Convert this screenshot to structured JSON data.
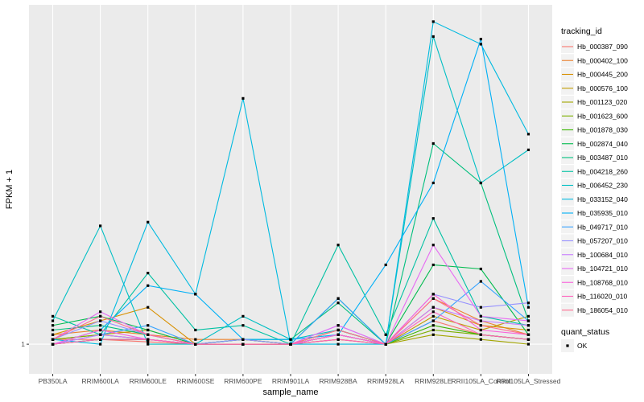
{
  "chart_data": {
    "type": "line",
    "title": "",
    "xlabel": "sample_name",
    "ylabel": "FPKM + 1",
    "categories": [
      "PB350LA",
      "RRIM600LA",
      "RRIM600LE",
      "RRIM600SE",
      "RRIM600PE",
      "RRIM901LA",
      "RRIM928BA",
      "RRIM928LA",
      "RRIM928LE",
      "RRII105LA_Control",
      "RRII105LA_Stressed"
    ],
    "y_ticks": [
      1
    ],
    "y_tick_labels": [
      "1"
    ],
    "ylim": [
      0.94,
      2.03
    ],
    "y_scale": "log",
    "grid": true,
    "legend": {
      "position": "right",
      "title": "tracking_id",
      "entries": [
        "Hb_000387_090",
        "Hb_000402_100",
        "Hb_000445_200",
        "Hb_000576_100",
        "Hb_001123_020",
        "Hb_001623_600",
        "Hb_001878_030",
        "Hb_002874_040",
        "Hb_003487_010",
        "Hb_004218_260",
        "Hb_006452_230",
        "Hb_033152_040",
        "Hb_035935_010",
        "Hb_049717_010",
        "Hb_057207_010",
        "Hb_100684_010",
        "Hb_104721_010",
        "Hb_108768_010",
        "Hb_116020_010",
        "Hb_186054_010"
      ],
      "colors": [
        "#F8766D",
        "#EA8331",
        "#D89000",
        "#C09B00",
        "#A3A500",
        "#7CAE00",
        "#39B600",
        "#00BB4E",
        "#00BF7D",
        "#00C1A3",
        "#00BFC4",
        "#00BAE0",
        "#00B0F6",
        "#35A2FF",
        "#9590FF",
        "#C77CFF",
        "#E76BF3",
        "#FA62DB",
        "#FF62BC",
        "#FF6C91"
      ]
    },
    "shape_legend": {
      "title": "quant_status",
      "entries": [
        "OK"
      ]
    },
    "series": [
      {
        "name": "Hb_000387_090",
        "values": [
          1.01,
          1.01,
          1.005,
          1.0,
          1.0,
          1.0,
          1.01,
          1.0,
          1.05,
          1.02,
          1.01
        ]
      },
      {
        "name": "Hb_000402_100",
        "values": [
          1.02,
          1.03,
          1.02,
          1.01,
          1.01,
          1.0,
          1.02,
          1.0,
          1.1,
          1.05,
          1.02
        ]
      },
      {
        "name": "Hb_000445_200",
        "values": [
          1.02,
          1.05,
          1.08,
          1.0,
          1.01,
          1.0,
          1.03,
          1.0,
          1.08,
          1.04,
          1.03
        ]
      },
      {
        "name": "Hb_000576_100",
        "values": [
          1.01,
          1.02,
          1.03,
          1.0,
          1.0,
          1.0,
          1.02,
          1.0,
          1.06,
          1.03,
          1.06
        ]
      },
      {
        "name": "Hb_001123_020",
        "values": [
          1.0,
          1.01,
          1.01,
          1.0,
          1.0,
          1.0,
          1.01,
          1.0,
          1.02,
          1.01,
          1.0
        ]
      },
      {
        "name": "Hb_001623_600",
        "values": [
          1.01,
          1.02,
          1.01,
          1.0,
          1.0,
          1.0,
          1.03,
          1.0,
          1.03,
          1.02,
          1.01
        ]
      },
      {
        "name": "Hb_001878_030",
        "values": [
          1.0,
          1.01,
          1.01,
          1.0,
          1.0,
          1.0,
          1.02,
          1.0,
          1.04,
          1.02,
          1.01
        ]
      },
      {
        "name": "Hb_002874_040",
        "values": [
          1.04,
          1.06,
          1.03,
          1.0,
          1.01,
          1.0,
          1.1,
          1.0,
          1.18,
          1.17,
          1.02
        ]
      },
      {
        "name": "Hb_003487_010",
        "values": [
          1.03,
          1.04,
          1.02,
          1.0,
          1.01,
          1.01,
          1.09,
          1.0,
          1.52,
          1.4,
          1.05
        ]
      },
      {
        "name": "Hb_004218_260",
        "values": [
          1.06,
          1.02,
          1.16,
          1.03,
          1.04,
          1.0,
          1.23,
          1.02,
          1.3,
          1.06,
          1.04
        ]
      },
      {
        "name": "Hb_006452_230",
        "values": [
          1.05,
          1.28,
          1.0,
          1.0,
          1.06,
          1.01,
          1.03,
          1.0,
          1.9,
          1.4,
          1.5
        ]
      },
      {
        "name": "Hb_033152_040",
        "values": [
          1.01,
          1.0,
          1.29,
          1.11,
          1.67,
          1.0,
          1.0,
          1.0,
          1.96,
          1.87,
          1.55
        ]
      },
      {
        "name": "Hb_035935_010",
        "values": [
          1.0,
          1.03,
          1.13,
          1.11,
          1.01,
          1.01,
          1.02,
          1.18,
          1.4,
          1.89,
          1.08
        ]
      },
      {
        "name": "Hb_049717_010",
        "values": [
          1.0,
          1.02,
          1.04,
          1.0,
          1.0,
          1.0,
          1.1,
          1.0,
          1.05,
          1.14,
          1.05
        ]
      },
      {
        "name": "Hb_057207_010",
        "values": [
          1.01,
          1.05,
          1.02,
          1.0,
          1.01,
          1.0,
          1.04,
          1.0,
          1.11,
          1.08,
          1.09
        ]
      },
      {
        "name": "Hb_100684_010",
        "values": [
          1.0,
          1.02,
          1.01,
          1.0,
          1.0,
          1.0,
          1.02,
          1.0,
          1.08,
          1.05,
          1.04
        ]
      },
      {
        "name": "Hb_104721_010",
        "values": [
          1.01,
          1.07,
          1.02,
          1.0,
          1.0,
          1.0,
          1.04,
          1.0,
          1.23,
          1.06,
          1.05
        ]
      },
      {
        "name": "Hb_108768_010",
        "values": [
          1.0,
          1.03,
          1.01,
          1.0,
          1.0,
          1.0,
          1.02,
          1.0,
          1.11,
          1.03,
          1.02
        ]
      },
      {
        "name": "Hb_116020_010",
        "values": [
          1.0,
          1.01,
          1.01,
          1.0,
          1.0,
          1.0,
          1.01,
          1.0,
          1.07,
          1.02,
          1.01
        ]
      },
      {
        "name": "Hb_186054_010",
        "values": [
          1.01,
          1.06,
          1.02,
          1.0,
          1.0,
          1.0,
          1.03,
          1.0,
          1.1,
          1.04,
          1.02
        ]
      }
    ]
  }
}
